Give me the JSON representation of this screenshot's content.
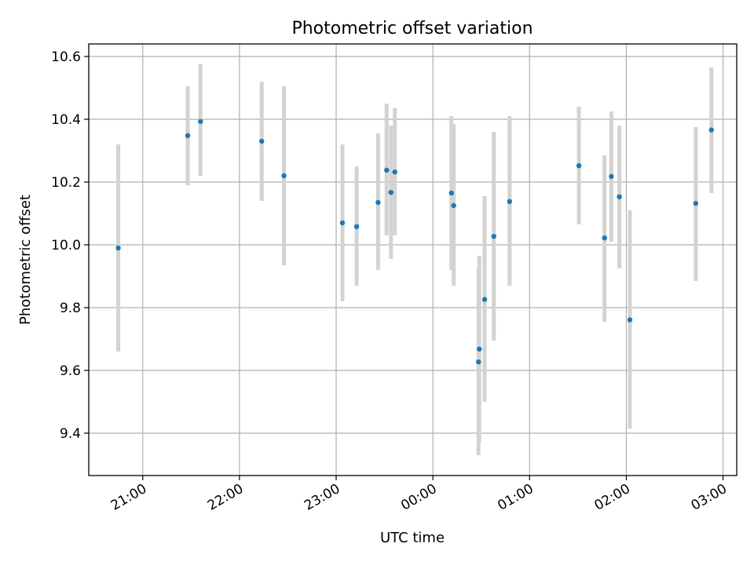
{
  "chart_data": {
    "type": "scatter",
    "title": "Photometric offset variation",
    "xlabel": "UTC time",
    "ylabel": "Photometric offset",
    "x_unit": "minutes since 21:00 UTC",
    "xlim": [
      -33.5,
      368.5
    ],
    "ylim": [
      9.265,
      10.64
    ],
    "xticks": [
      {
        "value": 0,
        "label": "21:00"
      },
      {
        "value": 60,
        "label": "22:00"
      },
      {
        "value": 120,
        "label": "23:00"
      },
      {
        "value": 180,
        "label": "00:00"
      },
      {
        "value": 240,
        "label": "01:00"
      },
      {
        "value": 300,
        "label": "02:00"
      },
      {
        "value": 360,
        "label": "03:00"
      }
    ],
    "yticks": [
      {
        "value": 9.4,
        "label": "9.4"
      },
      {
        "value": 9.6,
        "label": "9.6"
      },
      {
        "value": 9.8,
        "label": "9.8"
      },
      {
        "value": 10.0,
        "label": "10.0"
      },
      {
        "value": 10.2,
        "label": "10.2"
      },
      {
        "value": 10.4,
        "label": "10.4"
      },
      {
        "value": 10.6,
        "label": "10.6"
      }
    ],
    "grid": true,
    "colors": {
      "point": "#1f77b4",
      "errorbar": "#d3d3d3",
      "grid": "#b0b0b0"
    },
    "points": [
      {
        "x": -15.2,
        "y": 9.99,
        "low": 9.66,
        "high": 10.32
      },
      {
        "x": 27.9,
        "y": 10.348,
        "low": 10.19,
        "high": 10.505
      },
      {
        "x": 35.8,
        "y": 10.393,
        "low": 10.22,
        "high": 10.575
      },
      {
        "x": 73.8,
        "y": 10.33,
        "low": 10.14,
        "high": 10.52
      },
      {
        "x": 87.6,
        "y": 10.22,
        "low": 9.935,
        "high": 10.505
      },
      {
        "x": 123.9,
        "y": 10.07,
        "low": 9.82,
        "high": 10.32
      },
      {
        "x": 132.7,
        "y": 10.058,
        "low": 9.87,
        "high": 10.25
      },
      {
        "x": 146.0,
        "y": 10.135,
        "low": 9.92,
        "high": 10.355
      },
      {
        "x": 151.3,
        "y": 10.238,
        "low": 10.03,
        "high": 10.45
      },
      {
        "x": 154.0,
        "y": 10.167,
        "low": 9.955,
        "high": 10.38
      },
      {
        "x": 156.4,
        "y": 10.232,
        "low": 10.03,
        "high": 10.435
      },
      {
        "x": 191.5,
        "y": 10.165,
        "low": 9.92,
        "high": 10.41
      },
      {
        "x": 192.9,
        "y": 10.125,
        "low": 9.87,
        "high": 10.385
      },
      {
        "x": 208.8,
        "y": 9.668,
        "low": 9.37,
        "high": 9.965
      },
      {
        "x": 208.3,
        "y": 9.627,
        "low": 9.33,
        "high": 9.925
      },
      {
        "x": 212.1,
        "y": 9.826,
        "low": 9.5,
        "high": 10.155
      },
      {
        "x": 217.8,
        "y": 10.027,
        "low": 9.695,
        "high": 10.36
      },
      {
        "x": 227.6,
        "y": 10.138,
        "low": 9.87,
        "high": 10.41
      },
      {
        "x": 270.6,
        "y": 10.252,
        "low": 10.065,
        "high": 10.44
      },
      {
        "x": 286.5,
        "y": 10.022,
        "low": 9.755,
        "high": 10.285
      },
      {
        "x": 290.7,
        "y": 10.218,
        "low": 10.01,
        "high": 10.425
      },
      {
        "x": 295.7,
        "y": 10.153,
        "low": 9.925,
        "high": 10.38
      },
      {
        "x": 302.2,
        "y": 9.761,
        "low": 9.415,
        "high": 10.11
      },
      {
        "x": 343.1,
        "y": 10.132,
        "low": 9.885,
        "high": 10.375
      },
      {
        "x": 352.8,
        "y": 10.366,
        "low": 10.165,
        "high": 10.565
      }
    ]
  }
}
